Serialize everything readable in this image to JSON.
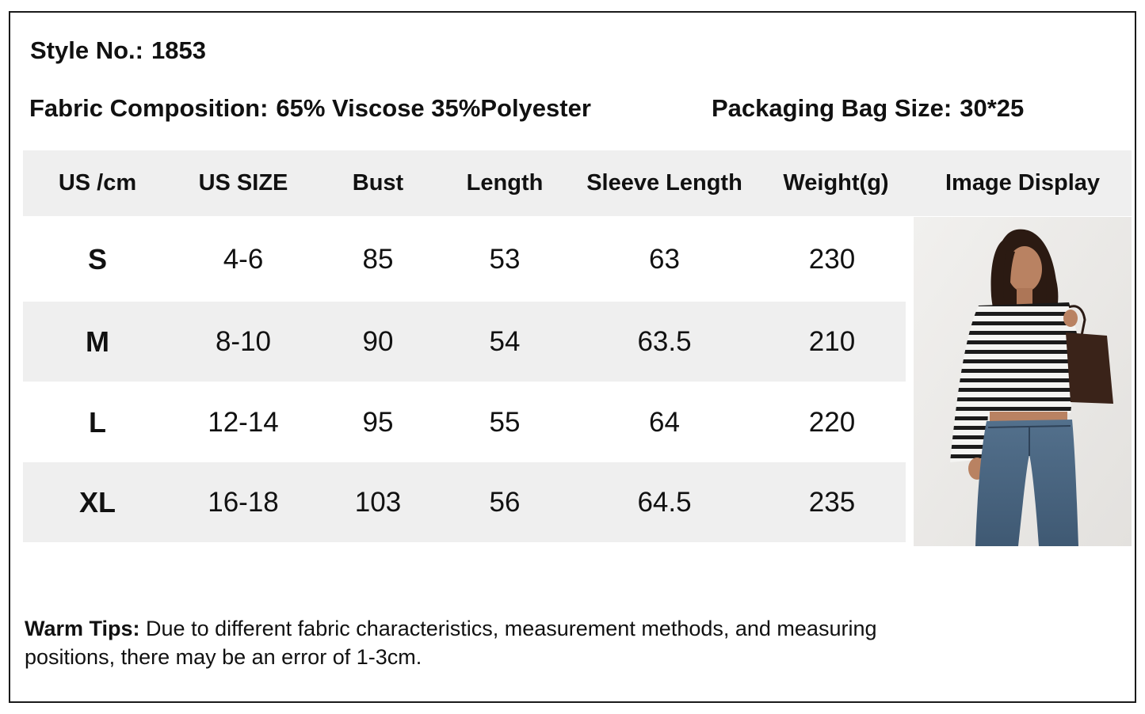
{
  "style": {
    "label": "Style No.:",
    "value": "1853"
  },
  "fabric": {
    "label": "Fabric Composition:",
    "value": "65% Viscose 35%Polyester"
  },
  "packaging": {
    "label": "Packaging Bag Size:",
    "value": "30*25"
  },
  "table": {
    "headers": [
      "US /cm",
      "US SIZE",
      "Bust",
      "Length",
      "Sleeve Length",
      "Weight(g)",
      "Image Display"
    ],
    "rows": [
      {
        "size": "S",
        "us_size": "4-6",
        "bust": "85",
        "length": "53",
        "sleeve": "63",
        "weight": "230"
      },
      {
        "size": "M",
        "us_size": "8-10",
        "bust": "90",
        "length": "54",
        "sleeve": "63.5",
        "weight": "210"
      },
      {
        "size": "L",
        "us_size": "12-14",
        "bust": "95",
        "length": "55",
        "sleeve": "64",
        "weight": "220"
      },
      {
        "size": "XL",
        "us_size": "16-18",
        "bust": "103",
        "length": "56",
        "sleeve": "64.5",
        "weight": "235"
      }
    ]
  },
  "tips": {
    "label": "Warm Tips:",
    "text": "Due to different fabric characteristics, measurement methods, and measuring positions, there may be an error of 1-3cm."
  },
  "colors": {
    "header_band": "#efefef",
    "row_shade": "#efefef",
    "text": "#111111",
    "border": "#1a1a1a"
  }
}
